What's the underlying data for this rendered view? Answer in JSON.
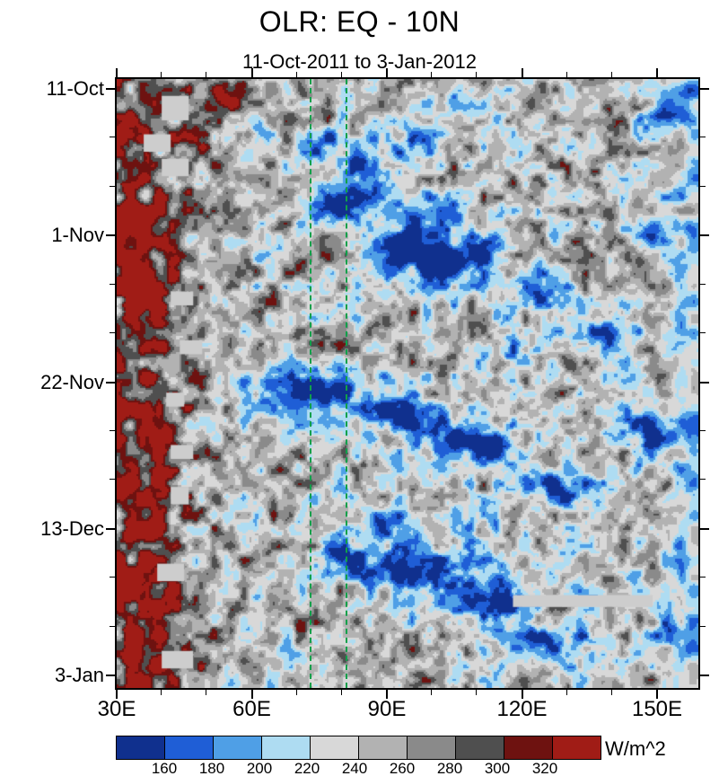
{
  "title": "OLR: EQ - 10N",
  "subtitle": "11-Oct-2011 to 3-Jan-2012",
  "chart_data": {
    "type": "heatmap",
    "variant": "hovmoller-filled-contour",
    "title": "OLR: EQ - 10N",
    "subtitle": "11-Oct-2011 to 3-Jan-2012",
    "x_axis": {
      "quantity": "longitude",
      "range": [
        30,
        159
      ],
      "major_ticks": [
        30,
        60,
        90,
        120,
        150
      ],
      "major_tick_labels": [
        "30E",
        "60E",
        "90E",
        "120E",
        "150E"
      ],
      "minor_tick_step": 10
    },
    "y_axis": {
      "quantity": "time",
      "direction": "downward",
      "start_date": "11-Oct-2011",
      "end_date": "3-Jan-2012",
      "major_tick_labels": [
        "11-Oct",
        "1-Nov",
        "22-Nov",
        "13-Dec",
        "3-Jan"
      ],
      "major_tick_day_offsets": [
        0,
        21,
        42,
        63,
        84
      ],
      "minor_tick_step_days": 7
    },
    "colorbar": {
      "units": "W/m^2",
      "tick_labels": [
        "160",
        "180",
        "200",
        "220",
        "240",
        "260",
        "280",
        "300",
        "320"
      ],
      "levels": [
        160,
        180,
        200,
        220,
        240,
        260,
        280,
        300,
        320
      ],
      "colors": [
        "#10308e",
        "#1f5ed6",
        "#4f9fe6",
        "#aedcf2",
        "#d8d8d8",
        "#b2b2b2",
        "#8a8a8a",
        "#4f4f4f",
        "#6e1210",
        "#a01c16"
      ]
    },
    "reference_lines": [
      {
        "longitude": 73,
        "style": "dashed",
        "color": "#0fa04a"
      },
      {
        "longitude": 81,
        "style": "dashed",
        "color": "#0fa04a"
      }
    ],
    "background": {
      "mean_olr": 246,
      "high_olr_side": "west (30-50E, dark red > 300)",
      "low_olr_envelopes": "eastward-propagating blue regions 60E-155E"
    },
    "low_olr_events": [
      {
        "lon": 77,
        "day": 8,
        "lon_sigma": 6,
        "day_sigma": 2.5,
        "amplitude": 78
      },
      {
        "lon": 87,
        "day": 12,
        "lon_sigma": 8,
        "day_sigma": 3,
        "amplitude": 72
      },
      {
        "lon": 79,
        "day": 16.5,
        "lon_sigma": 7,
        "day_sigma": 3,
        "amplitude": 100
      },
      {
        "lon": 98,
        "day": 18,
        "lon_sigma": 8,
        "day_sigma": 3,
        "amplitude": 70
      },
      {
        "lon": 93,
        "day": 22,
        "lon_sigma": 8,
        "day_sigma": 3,
        "amplitude": 70
      },
      {
        "lon": 105,
        "day": 24.5,
        "lon_sigma": 12,
        "day_sigma": 3.5,
        "amplitude": 108
      },
      {
        "lon": 124,
        "day": 30,
        "lon_sigma": 7,
        "day_sigma": 3,
        "amplitude": 72
      },
      {
        "lon": 137,
        "day": 35,
        "lon_sigma": 8,
        "day_sigma": 3,
        "amplitude": 68
      },
      {
        "lon": 119,
        "day": 38,
        "lon_sigma": 5,
        "day_sigma": 2.5,
        "amplitude": 55
      },
      {
        "lon": 74,
        "day": 43,
        "lon_sigma": 13,
        "day_sigma": 3.5,
        "amplitude": 112
      },
      {
        "lon": 91,
        "day": 46.5,
        "lon_sigma": 7,
        "day_sigma": 2.5,
        "amplitude": 88
      },
      {
        "lon": 104,
        "day": 50,
        "lon_sigma": 10,
        "day_sigma": 3,
        "amplitude": 85
      },
      {
        "lon": 113,
        "day": 51.5,
        "lon_sigma": 7,
        "day_sigma": 2.5,
        "amplitude": 82
      },
      {
        "lon": 146,
        "day": 49,
        "lon_sigma": 7,
        "day_sigma": 3,
        "amplitude": 70
      },
      {
        "lon": 128,
        "day": 56.5,
        "lon_sigma": 8,
        "day_sigma": 3,
        "amplitude": 75
      },
      {
        "lon": 90,
        "day": 62,
        "lon_sigma": 6,
        "day_sigma": 3,
        "amplitude": 78
      },
      {
        "lon": 108,
        "day": 61,
        "lon_sigma": 5,
        "day_sigma": 2.5,
        "amplitude": 62
      },
      {
        "lon": 80,
        "day": 66.5,
        "lon_sigma": 6,
        "day_sigma": 2.5,
        "amplitude": 80
      },
      {
        "lon": 97,
        "day": 69,
        "lon_sigma": 12,
        "day_sigma": 3.5,
        "amplitude": 108
      },
      {
        "lon": 111,
        "day": 73,
        "lon_sigma": 9,
        "day_sigma": 3,
        "amplitude": 95
      },
      {
        "lon": 126,
        "day": 79.5,
        "lon_sigma": 9,
        "day_sigma": 3,
        "amplitude": 85
      },
      {
        "lon": 152,
        "day": 3,
        "lon_sigma": 6,
        "day_sigma": 3,
        "amplitude": 58
      },
      {
        "lon": 105,
        "day": 1.5,
        "lon_sigma": 12,
        "day_sigma": 3,
        "amplitude": 45
      },
      {
        "lon": 95,
        "day": 7,
        "lon_sigma": 8,
        "day_sigma": 3,
        "amplitude": 48
      },
      {
        "lon": 154,
        "day": 78,
        "lon_sigma": 5,
        "day_sigma": 3,
        "amplitude": 60
      },
      {
        "lon": 136,
        "day": 83,
        "lon_sigma": 7,
        "day_sigma": 2.5,
        "amplitude": 55
      },
      {
        "lon": 148,
        "day": 20,
        "lon_sigma": 6,
        "day_sigma": 3,
        "amplitude": 55
      },
      {
        "lon": 158,
        "day": 47,
        "lon_sigma": 5,
        "day_sigma": 3,
        "amplitude": 55
      }
    ],
    "high_olr_events": [
      {
        "lon": 55,
        "day": 1,
        "lon_sigma": 4,
        "day_sigma": 2.5,
        "amplitude": 70
      },
      {
        "lon": 33,
        "day": 22,
        "lon_sigma": 6,
        "day_sigma": 8,
        "amplitude": 45
      },
      {
        "lon": 36,
        "day": 50,
        "lon_sigma": 5,
        "day_sigma": 6,
        "amplitude": 42
      },
      {
        "lon": 38,
        "day": 70,
        "lon_sigma": 6,
        "day_sigma": 6,
        "amplitude": 48
      },
      {
        "lon": 42,
        "day": 81,
        "lon_sigma": 9,
        "day_sigma": 5,
        "amplitude": 62
      },
      {
        "lon": 50,
        "day": 9,
        "lon_sigma": 3,
        "day_sigma": 3,
        "amplitude": 38
      }
    ],
    "missing_data_color": "#cdcdcd",
    "missing_data_patches": [
      {
        "lon": [
          40,
          46
        ],
        "days": [
          1.0,
          4.5
        ]
      },
      {
        "lon": [
          36,
          42
        ],
        "days": [
          6.5,
          9.0
        ]
      },
      {
        "lon": [
          40,
          46
        ],
        "days": [
          10.0,
          12.5
        ]
      },
      {
        "lon": [
          42,
          47
        ],
        "days": [
          29,
          31
        ]
      },
      {
        "lon": [
          44,
          49
        ],
        "days": [
          36,
          38
        ]
      },
      {
        "lon": [
          41,
          45
        ],
        "days": [
          43.5,
          45.5
        ]
      },
      {
        "lon": [
          42,
          47
        ],
        "days": [
          51,
          53
        ]
      },
      {
        "lon": [
          42,
          46
        ],
        "days": [
          57,
          59.5
        ]
      },
      {
        "lon": [
          39,
          45
        ],
        "days": [
          68,
          70.5
        ]
      },
      {
        "lon": [
          40,
          47
        ],
        "days": [
          80.5,
          83
        ]
      },
      {
        "lon": [
          118,
          149
        ],
        "days": [
          72.5,
          74.2
        ]
      }
    ]
  }
}
